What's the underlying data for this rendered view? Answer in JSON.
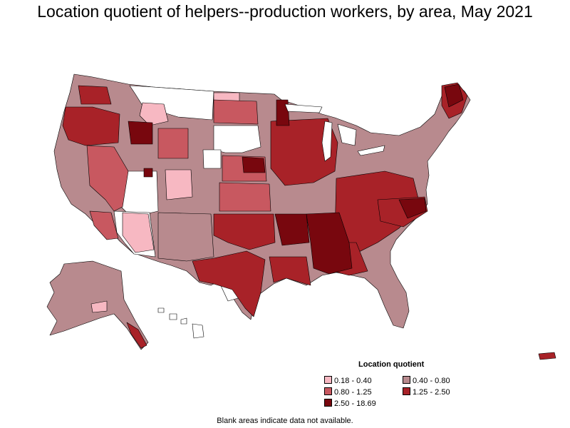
{
  "title": "Location quotient of helpers--production workers, by area, May 2021",
  "legend": {
    "title": "Location quotient",
    "items": [
      {
        "label": "0.18 - 0.40",
        "color": "#f7b8c2"
      },
      {
        "label": "0.40 - 0.80",
        "color": "#b88a8e"
      },
      {
        "label": "0.80 - 1.25",
        "color": "#c85860"
      },
      {
        "label": "1.25 - 2.50",
        "color": "#a82228"
      },
      {
        "label": "2.50 - 18.69",
        "color": "#78070e"
      }
    ]
  },
  "note": "Blank areas indicate data not available.",
  "colors": {
    "border": "#000000",
    "no_data": "#ffffff"
  }
}
